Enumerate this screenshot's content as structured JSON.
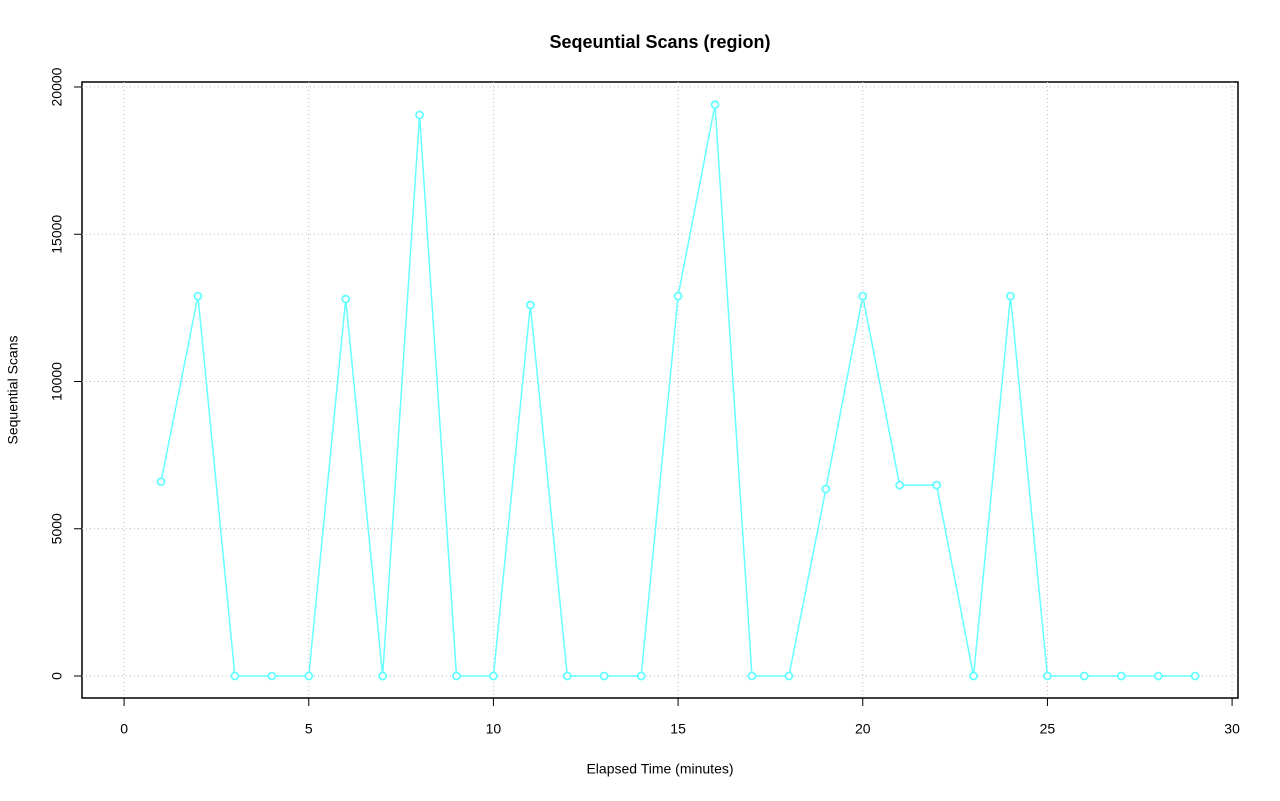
{
  "chart_data": {
    "type": "line",
    "title": "Seqeuntial Scans (region)",
    "x_label": "Elapsed Time (minutes)",
    "y_label": "Sequential Scans",
    "x": [
      1,
      2,
      3,
      4,
      5,
      6,
      7,
      8,
      9,
      10,
      11,
      12,
      13,
      14,
      15,
      16,
      17,
      18,
      19,
      20,
      21,
      22,
      23,
      24,
      25,
      26,
      27,
      28,
      29
    ],
    "series": [
      {
        "name": "region",
        "color": "#66ffff",
        "values": [
          6600,
          12900,
          0,
          0,
          0,
          12800,
          0,
          19050,
          0,
          0,
          12600,
          0,
          0,
          0,
          12900,
          19400,
          0,
          0,
          6350,
          12900,
          6480,
          6480,
          0,
          12900,
          0,
          0,
          0,
          0,
          0
        ]
      }
    ],
    "xlim": [
      -1.14,
      30.16
    ],
    "ylim": [
      -747,
      20170
    ],
    "xticks": [
      0,
      5,
      10,
      15,
      20,
      25,
      30
    ],
    "yticks": [
      0,
      5000,
      10000,
      15000,
      20000
    ],
    "grid": true
  }
}
